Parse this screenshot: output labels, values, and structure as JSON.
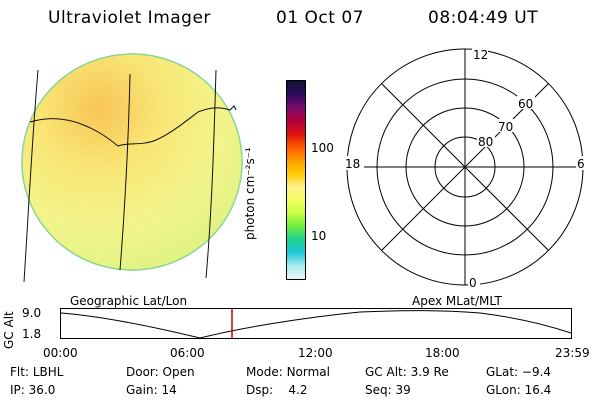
{
  "header": {
    "instrument": "Ultraviolet Imager",
    "date": "01 Oct 07",
    "time": "08:04:49 UT"
  },
  "colorbar": {
    "unit_label": "photon cm⁻²s⁻¹",
    "ticks": [
      {
        "label": "100",
        "value": 100
      },
      {
        "label": "10",
        "value": 10
      }
    ],
    "colors": [
      "#111133",
      "#2a0a5e",
      "#7a0a6e",
      "#b0003a",
      "#dd1010",
      "#ff5a00",
      "#ff9a00",
      "#ffcc00",
      "#fff08a",
      "#f4ff60",
      "#c8ff40",
      "#70ee40",
      "#20d090",
      "#20c8d8",
      "#a8ecf0",
      "#e8f6f8"
    ]
  },
  "polar_plot": {
    "labels": {
      "top": "12",
      "left": "18",
      "right": "6",
      "bottom": "0"
    },
    "rings": [
      "80",
      "70",
      "60"
    ]
  },
  "orbit_plot": {
    "left_title": "Geographic Lat/Lon",
    "right_title": "Apex MLat/MLT",
    "y_axis_label": "GC Alt",
    "y_ticks": [
      "9.0",
      "1.8"
    ],
    "x_ticks": [
      "00:00",
      "06:00",
      "12:00",
      "18:00",
      "23:59"
    ],
    "current_time_marker": "08:04",
    "marker_color": "#cc0000"
  },
  "footer": {
    "row1": [
      {
        "key": "Flt:",
        "val": "LBHL"
      },
      {
        "key": "Door:",
        "val": "Open"
      },
      {
        "key": "Mode:",
        "val": "Normal"
      },
      {
        "key": "GC Alt:",
        "val": "3.9 Re"
      },
      {
        "key": "GLat:",
        "val": "−9.4"
      }
    ],
    "row2": [
      {
        "key": "IP:",
        "val": "36.0"
      },
      {
        "key": "Gain:",
        "val": "14"
      },
      {
        "key": "Dsp:",
        "val": "4.2"
      },
      {
        "key": "Seq:",
        "val": "39"
      },
      {
        "key": "GLon:",
        "val": "16.4"
      }
    ]
  }
}
